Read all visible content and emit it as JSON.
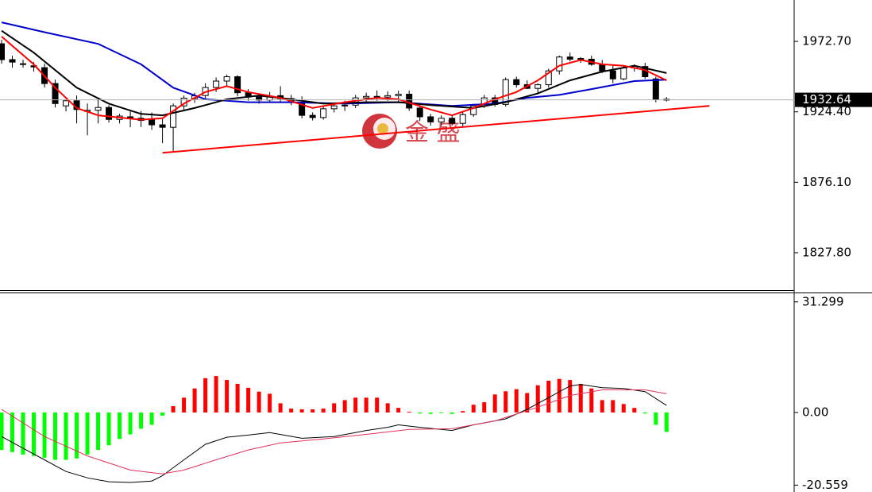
{
  "chart_data": [
    {
      "type": "candlestick",
      "ylim": [
        1802.15,
        2001.1
      ],
      "xlim": [
        -0.15,
        73.9
      ],
      "yticks": [
        {
          "value": 1972.7,
          "label": "1972.70"
        },
        {
          "value": 1924.4,
          "label": "1924.40"
        },
        {
          "value": 1876.1,
          "label": "1876.10"
        },
        {
          "value": 1827.8,
          "label": "1827.80"
        }
      ],
      "up_color": "#ffffff",
      "down_color": "#000000",
      "open": [
        1971.1,
        1960.2,
        1957.4,
        1956.0,
        1954.7,
        1943.8,
        1928.5,
        1932.0,
        1924.7,
        1925.5,
        1927.4,
        1919.2,
        1921.0,
        1920.0,
        1919.5,
        1915.5,
        1913.8,
        1928.5,
        1933.5,
        1935.6,
        1941.1,
        1945.5,
        1948.5,
        1937.5,
        1934.6,
        1932.5,
        1935.5,
        1933.5,
        1931.0,
        1922.0,
        1920.5,
        1926.5,
        1928.5,
        1929.0,
        1934.0,
        1935.0,
        1934.5,
        1935.5,
        1936.5,
        1927.0,
        1921.0,
        1917.5,
        1920.0,
        1916.5,
        1922.5,
        1928.5,
        1934.0,
        1929.5,
        1946.5,
        1943.0,
        1940.5,
        1943.0,
        1952.5,
        1962.0,
        1960.5,
        1960.5,
        1957.0,
        1952.5,
        1947.0,
        1954.5,
        1955.5,
        1947.0,
        1933.0
      ],
      "high": [
        1973.8,
        1962.9,
        1960.2,
        1958.5,
        1957.4,
        1946.5,
        1933.0,
        1935.6,
        1930.1,
        1932.9,
        1929.0,
        1923.0,
        1924.7,
        1925.0,
        1924.0,
        1920.0,
        1930.1,
        1935.6,
        1937.5,
        1944.0,
        1948.0,
        1950.0,
        1949.5,
        1940.0,
        1937.0,
        1938.0,
        1942.0,
        1936.0,
        1935.0,
        1924.0,
        1928.0,
        1930.5,
        1932.0,
        1936.0,
        1937.5,
        1939.0,
        1938.5,
        1939.0,
        1939.0,
        1929.0,
        1923.0,
        1922.0,
        1922.0,
        1924.0,
        1930.0,
        1936.0,
        1936.0,
        1948.0,
        1948.5,
        1946.0,
        1944.0,
        1954.0,
        1963.0,
        1965.0,
        1962.0,
        1963.0,
        1960.0,
        1956.0,
        1956.0,
        1957.0,
        1958.0,
        1948.5,
        1934.5
      ],
      "low": [
        1957.4,
        1954.7,
        1954.7,
        1952.0,
        1941.1,
        1927.4,
        1924.7,
        1916.5,
        1908.3,
        1916.5,
        1917.0,
        1916.5,
        1913.8,
        1914.0,
        1912.0,
        1902.9,
        1897.4,
        1926.0,
        1930.5,
        1933.0,
        1938.0,
        1942.0,
        1935.0,
        1932.0,
        1930.0,
        1930.5,
        1931.0,
        1929.0,
        1920.0,
        1918.5,
        1919.0,
        1924.0,
        1925.0,
        1927.0,
        1930.0,
        1932.0,
        1932.0,
        1931.0,
        1925.0,
        1918.0,
        1915.0,
        1915.0,
        1915.0,
        1914.0,
        1921.0,
        1927.0,
        1928.0,
        1928.0,
        1941.0,
        1940.0,
        1937.0,
        1941.0,
        1950.0,
        1959.0,
        1958.0,
        1956.0,
        1951.0,
        1944.0,
        1946.0,
        1952.0,
        1947.0,
        1931.0,
        1931.5
      ],
      "close": [
        1960.2,
        1958.5,
        1957.0,
        1955.2,
        1943.8,
        1930.1,
        1932.0,
        1926.0,
        1925.5,
        1927.4,
        1919.2,
        1921.5,
        1919.6,
        1918.5,
        1915.5,
        1913.8,
        1928.5,
        1933.8,
        1935.4,
        1941.1,
        1945.5,
        1948.5,
        1937.5,
        1934.6,
        1932.5,
        1935.0,
        1933.5,
        1931.0,
        1922.0,
        1920.5,
        1926.5,
        1928.5,
        1929.0,
        1934.0,
        1935.0,
        1934.5,
        1935.5,
        1936.5,
        1927.0,
        1921.0,
        1917.5,
        1920.0,
        1916.5,
        1922.5,
        1928.5,
        1934.0,
        1929.5,
        1946.5,
        1943.0,
        1940.5,
        1943.0,
        1952.5,
        1962.0,
        1960.5,
        1961.0,
        1957.0,
        1952.5,
        1947.0,
        1954.5,
        1955.5,
        1948.5,
        1933.0,
        1932.64
      ],
      "lines": [
        {
          "color": "#0000cc",
          "x": [
            0,
            4,
            9,
            13,
            16,
            19,
            23,
            27,
            32,
            37,
            42,
            46,
            49,
            52,
            55,
            59,
            62
          ],
          "values": [
            1985.8,
            1979,
            1971,
            1957,
            1941,
            1933,
            1931,
            1931,
            1930,
            1931,
            1928.5,
            1930,
            1934,
            1936,
            1940,
            1945.5,
            1946.5
          ]
        },
        {
          "color": "#000000",
          "x": [
            0,
            3,
            7,
            10,
            13,
            15,
            18,
            21,
            24,
            27,
            30,
            34,
            37,
            40,
            44,
            47,
            50,
            53,
            56,
            59,
            62
          ],
          "values": [
            1980,
            1965,
            1941,
            1930,
            1923,
            1922,
            1927,
            1933,
            1935.6,
            1933,
            1930,
            1931,
            1931,
            1929,
            1927,
            1931,
            1937,
            1946,
            1952,
            1956,
            1951
          ]
        },
        {
          "color": "#ff0000",
          "x": [
            0,
            3,
            5,
            7,
            9,
            13,
            15,
            17,
            19,
            21,
            23,
            26,
            29,
            32,
            35,
            37,
            40,
            42,
            44,
            46,
            48,
            50,
            52,
            54,
            56,
            58,
            60,
            62
          ],
          "values": [
            1976,
            1957,
            1941,
            1927,
            1922,
            1919,
            1920,
            1930,
            1938,
            1942,
            1938,
            1934,
            1927,
            1931,
            1934,
            1933,
            1926,
            1922,
            1927,
            1933,
            1938,
            1946,
            1956,
            1960,
            1957,
            1956,
            1953,
            1946
          ]
        }
      ],
      "trendline": {
        "color": "#ff0000",
        "x": [
          15,
          66
        ],
        "values": [
          1896.3,
          1928.5
        ]
      },
      "last_price": 1932.64,
      "watermark": "金 盛"
    },
    {
      "type": "macd",
      "ylim": [
        -22.5,
        33.5
      ],
      "xlim": [
        -0.15,
        73.9
      ],
      "yticks": [
        31.299,
        {
          "value": 0,
          "label": "0.00"
        },
        -20.559
      ],
      "positive_color": "#ff0000",
      "negative_color": "#00ff00",
      "values": [
        -10.6,
        -11.2,
        -11.9,
        -12.3,
        -12.8,
        -13.4,
        -13.4,
        -13.0,
        -11.9,
        -10.6,
        -9.3,
        -7.5,
        -6.2,
        -4.6,
        -3.5,
        -0.9,
        1.8,
        4.2,
        6.8,
        9.7,
        10.3,
        9.2,
        8.1,
        7.0,
        5.9,
        5.3,
        2.6,
        1.1,
        0.9,
        0.9,
        1.1,
        2.6,
        3.5,
        4.2,
        4.2,
        4.2,
        2.6,
        1.3,
        0.2,
        -0.3,
        -0.4,
        -0.2,
        -0.4,
        0.4,
        2.2,
        2.9,
        5.1,
        6.0,
        6.6,
        5.5,
        7.7,
        9.0,
        9.5,
        9.2,
        8.1,
        6.8,
        3.5,
        3.5,
        2.4,
        1.3,
        -0.3,
        -3.5,
        -5.5
      ],
      "lines": [
        {
          "color": "#000000",
          "x": [
            0,
            2,
            4,
            6,
            8,
            10,
            12,
            14,
            15,
            17,
            19,
            21,
            23,
            25,
            28,
            31,
            34,
            36,
            37,
            39,
            42,
            44,
            47,
            49,
            51,
            53,
            54,
            56,
            58,
            60,
            62
          ],
          "values": [
            -6.8,
            -10.1,
            -13.4,
            -16.7,
            -18.5,
            -19.6,
            -19.8,
            -19.4,
            -17.9,
            -13.4,
            -9.0,
            -7.0,
            -6.4,
            -5.7,
            -7.3,
            -6.8,
            -5.1,
            -4.2,
            -3.5,
            -4.2,
            -5.1,
            -3.5,
            -1.8,
            0.9,
            4.2,
            7.5,
            7.9,
            7.0,
            6.8,
            5.9,
            2.0
          ]
        },
        {
          "color": "#e0305a",
          "x": [
            0,
            4,
            8,
            12,
            15,
            17,
            20,
            23,
            26,
            30,
            34,
            38,
            42,
            46,
            50,
            53,
            56,
            60,
            62
          ],
          "values": [
            0.9,
            -6.8,
            -12.3,
            -16.3,
            -17.4,
            -16.3,
            -13.4,
            -10.6,
            -8.6,
            -7.5,
            -6.2,
            -4.8,
            -4.6,
            -2.4,
            1.5,
            4.8,
            6.4,
            6.4,
            5.3
          ]
        }
      ]
    }
  ]
}
